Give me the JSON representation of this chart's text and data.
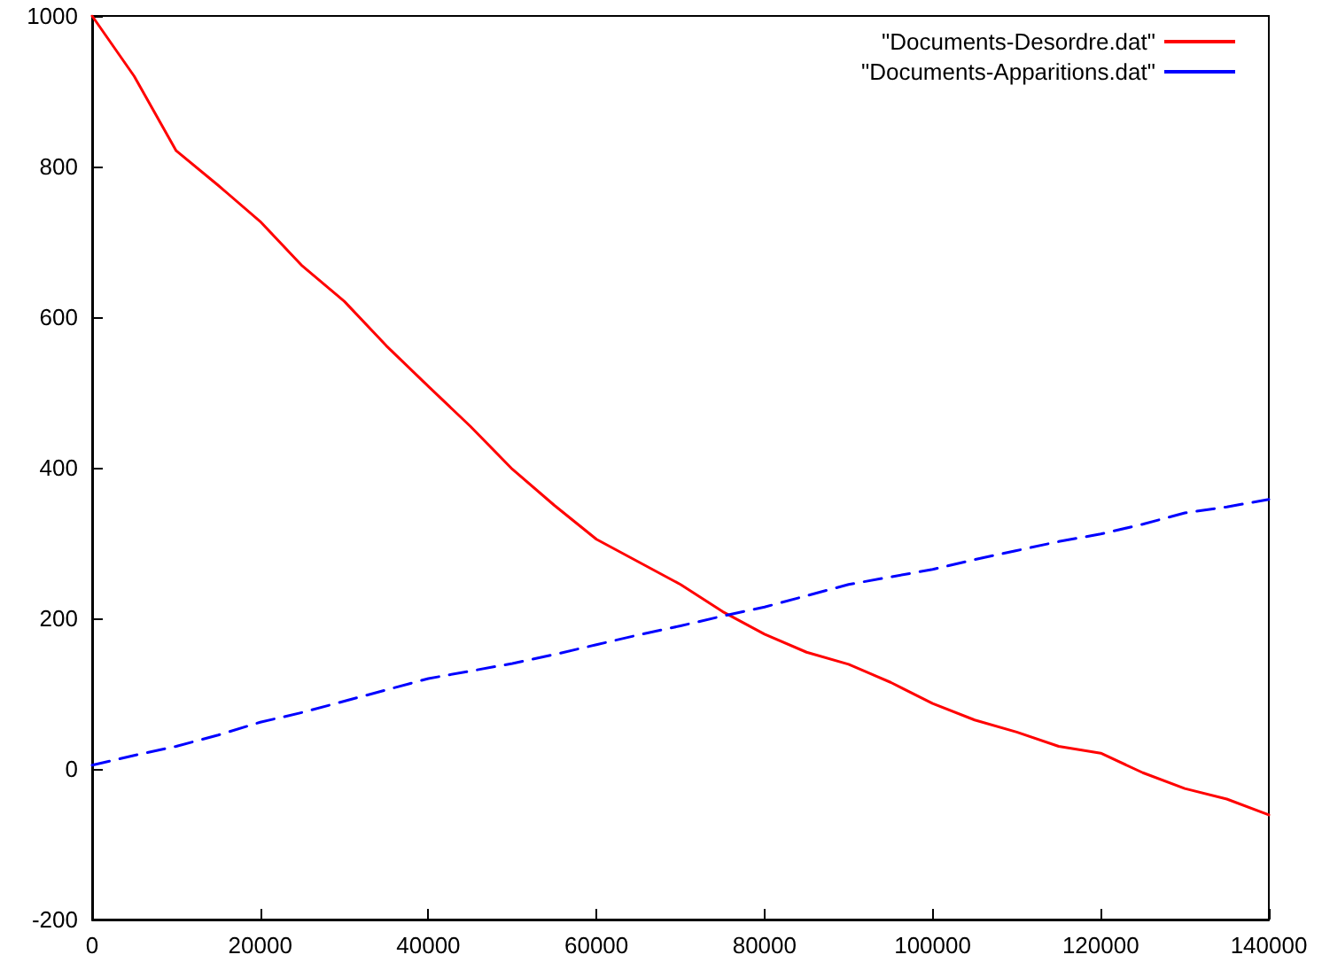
{
  "chart_data": {
    "type": "line",
    "xlim": [
      0,
      140000
    ],
    "ylim": [
      -200,
      1000
    ],
    "xticks": [
      0,
      20000,
      40000,
      60000,
      80000,
      100000,
      120000,
      140000
    ],
    "yticks": [
      -200,
      0,
      200,
      400,
      600,
      800,
      1000
    ],
    "grid": false,
    "legend": "top right",
    "marker": "none",
    "series": [
      {
        "name": "\"Documents-Desordre.dat\"",
        "color": "#ff0000",
        "line_style": "solid",
        "x": [
          0,
          5000,
          10000,
          15000,
          20000,
          25000,
          30000,
          35000,
          40000,
          45000,
          50000,
          55000,
          60000,
          65000,
          70000,
          75000,
          80000,
          85000,
          90000,
          95000,
          100000,
          105000,
          110000,
          115000,
          120000,
          125000,
          130000,
          135000,
          140000
        ],
        "values": [
          1000,
          920,
          821,
          775,
          727,
          668,
          621,
          562,
          508,
          455,
          398,
          350,
          305,
          275,
          245,
          209,
          179,
          155,
          139,
          115,
          87,
          65,
          49,
          30,
          21,
          -5,
          -26,
          -40,
          -61
        ]
      },
      {
        "name": "\"Documents-Apparitions.dat\"",
        "color": "#0000ff",
        "line_style": "dashed",
        "x": [
          0,
          5000,
          10000,
          15000,
          20000,
          25000,
          30000,
          35000,
          40000,
          45000,
          50000,
          55000,
          60000,
          65000,
          70000,
          75000,
          80000,
          85000,
          90000,
          95000,
          100000,
          105000,
          110000,
          115000,
          120000,
          125000,
          130000,
          135000,
          140000
        ],
        "values": [
          5,
          18,
          30,
          45,
          62,
          75,
          90,
          105,
          120,
          130,
          140,
          152,
          165,
          178,
          190,
          203,
          215,
          230,
          245,
          255,
          265,
          278,
          290,
          302,
          312,
          325,
          340,
          348,
          358
        ]
      }
    ]
  }
}
